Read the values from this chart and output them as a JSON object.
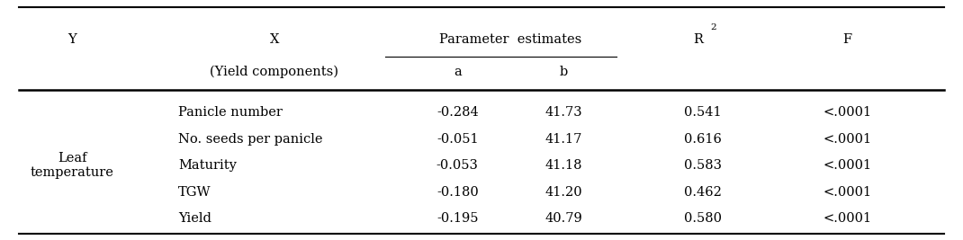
{
  "rows": [
    [
      "Panicle number",
      "-0.284",
      "41.73",
      "0.541",
      "<.0001"
    ],
    [
      "No. seeds per panicle",
      "-0.051",
      "41.17",
      "0.616",
      "<.0001"
    ],
    [
      "Maturity",
      "-0.053",
      "41.18",
      "0.583",
      "<.0001"
    ],
    [
      "TGW",
      "-0.180",
      "41.20",
      "0.462",
      "<.0001"
    ],
    [
      "Yield",
      "-0.195",
      "40.79",
      "0.580",
      "<.0001"
    ]
  ],
  "y_label_line1": "Leaf",
  "y_label_line2": "temperature",
  "figsize": [
    10.7,
    2.67
  ],
  "dpi": 100,
  "fontsize": 10.5
}
